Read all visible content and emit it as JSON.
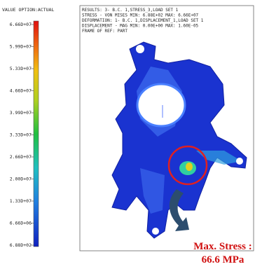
{
  "legend": {
    "title": "VALUE OPTION:ACTUAL",
    "labels": [
      "6.66D+07",
      "5.99D+07",
      "5.33D+07",
      "4.66D+07",
      "3.99D+07",
      "3.33D+07",
      "2.66D+07",
      "2.00D+07",
      "1.33D+07",
      "6.66D+06",
      "6.88D+02"
    ]
  },
  "header": {
    "lines": [
      "RESULTS: 3- B.C. 1,STRESS_3,LOAD SET 1",
      "STRESS - VON MISES MIN: 6.88E+02 MAX: 6.66E+07",
      "DEFORMATION: 1- B.C. 1,DISPLACEMENT_1,LOAD SET 1",
      "DISPLACEMENT - MAG MIN: 0.00E+00 MAX: 1.60E-05",
      "FRAME OF REF: PART"
    ]
  },
  "annotation": {
    "lines": [
      "Max. Stress :",
      "66.6 MPa"
    ]
  }
}
